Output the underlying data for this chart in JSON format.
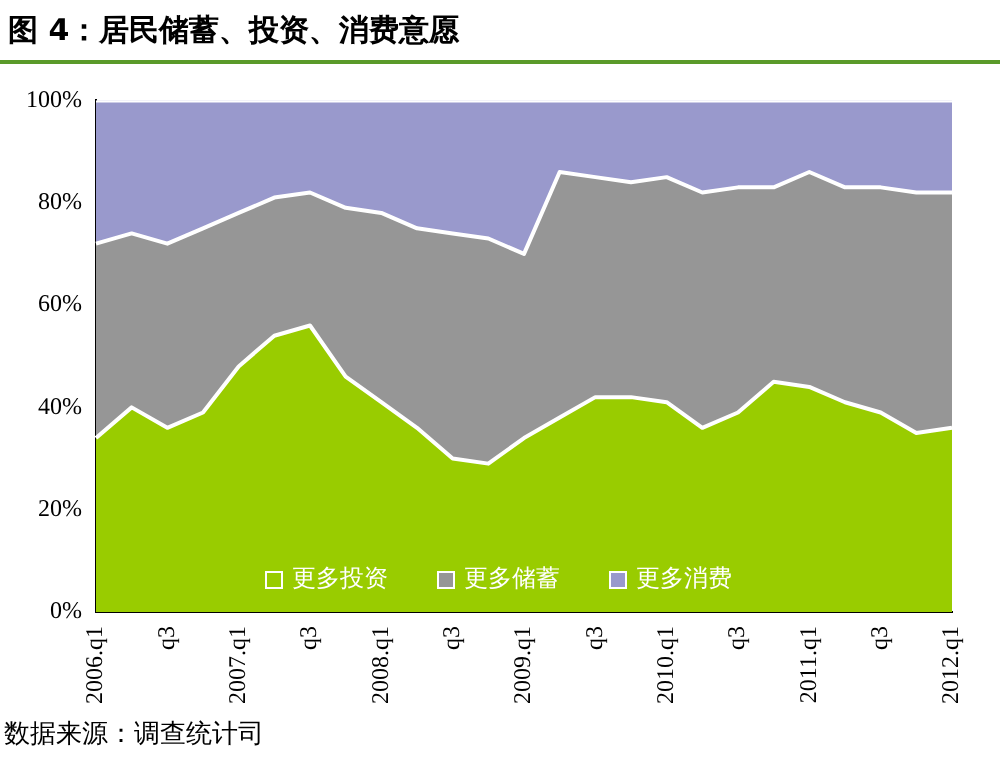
{
  "chart_data": {
    "type": "area",
    "title": "图 4：居民储蓄、投资、消费意愿",
    "categories": [
      "2006.q1",
      null,
      "q3",
      null,
      "2007.q1",
      null,
      "q3",
      null,
      "2008.q1",
      null,
      "q3",
      null,
      "2009.q1",
      null,
      "q3",
      null,
      "2010.q1",
      null,
      "q3",
      null,
      "2011.q1",
      null,
      "q3",
      null,
      "2012.q1"
    ],
    "series": [
      {
        "name": "更多投资",
        "color": "#99cc00",
        "values": [
          34,
          40,
          36,
          39,
          48,
          54,
          56,
          46,
          41,
          36,
          30,
          29,
          34,
          38,
          42,
          42,
          41,
          36,
          39,
          45,
          44,
          41,
          39,
          35,
          36
        ]
      },
      {
        "name": "更多储蓄",
        "color": "#969696",
        "values": [
          38,
          34,
          36,
          36,
          30,
          27,
          26,
          33,
          37,
          39,
          44,
          44,
          36,
          48,
          43,
          42,
          44,
          46,
          44,
          38,
          42,
          42,
          44,
          47,
          46
        ]
      },
      {
        "name": "更多消费",
        "color": "#9999cc",
        "values": [
          28,
          26,
          28,
          25,
          22,
          19,
          18,
          21,
          22,
          25,
          26,
          27,
          30,
          14,
          15,
          16,
          15,
          18,
          17,
          17,
          14,
          17,
          17,
          18,
          18
        ]
      }
    ],
    "stacked": true,
    "ylim": [
      0,
      100
    ],
    "yticks": [
      {
        "value": 0,
        "label": "0%"
      },
      {
        "value": 20,
        "label": "20%"
      },
      {
        "value": 40,
        "label": "40%"
      },
      {
        "value": 60,
        "label": "60%"
      },
      {
        "value": 80,
        "label": "80%"
      },
      {
        "value": 100,
        "label": "100%"
      }
    ],
    "grid": false,
    "legend": "bottom",
    "annotations": [
      "数据来源：调查统计司"
    ]
  }
}
